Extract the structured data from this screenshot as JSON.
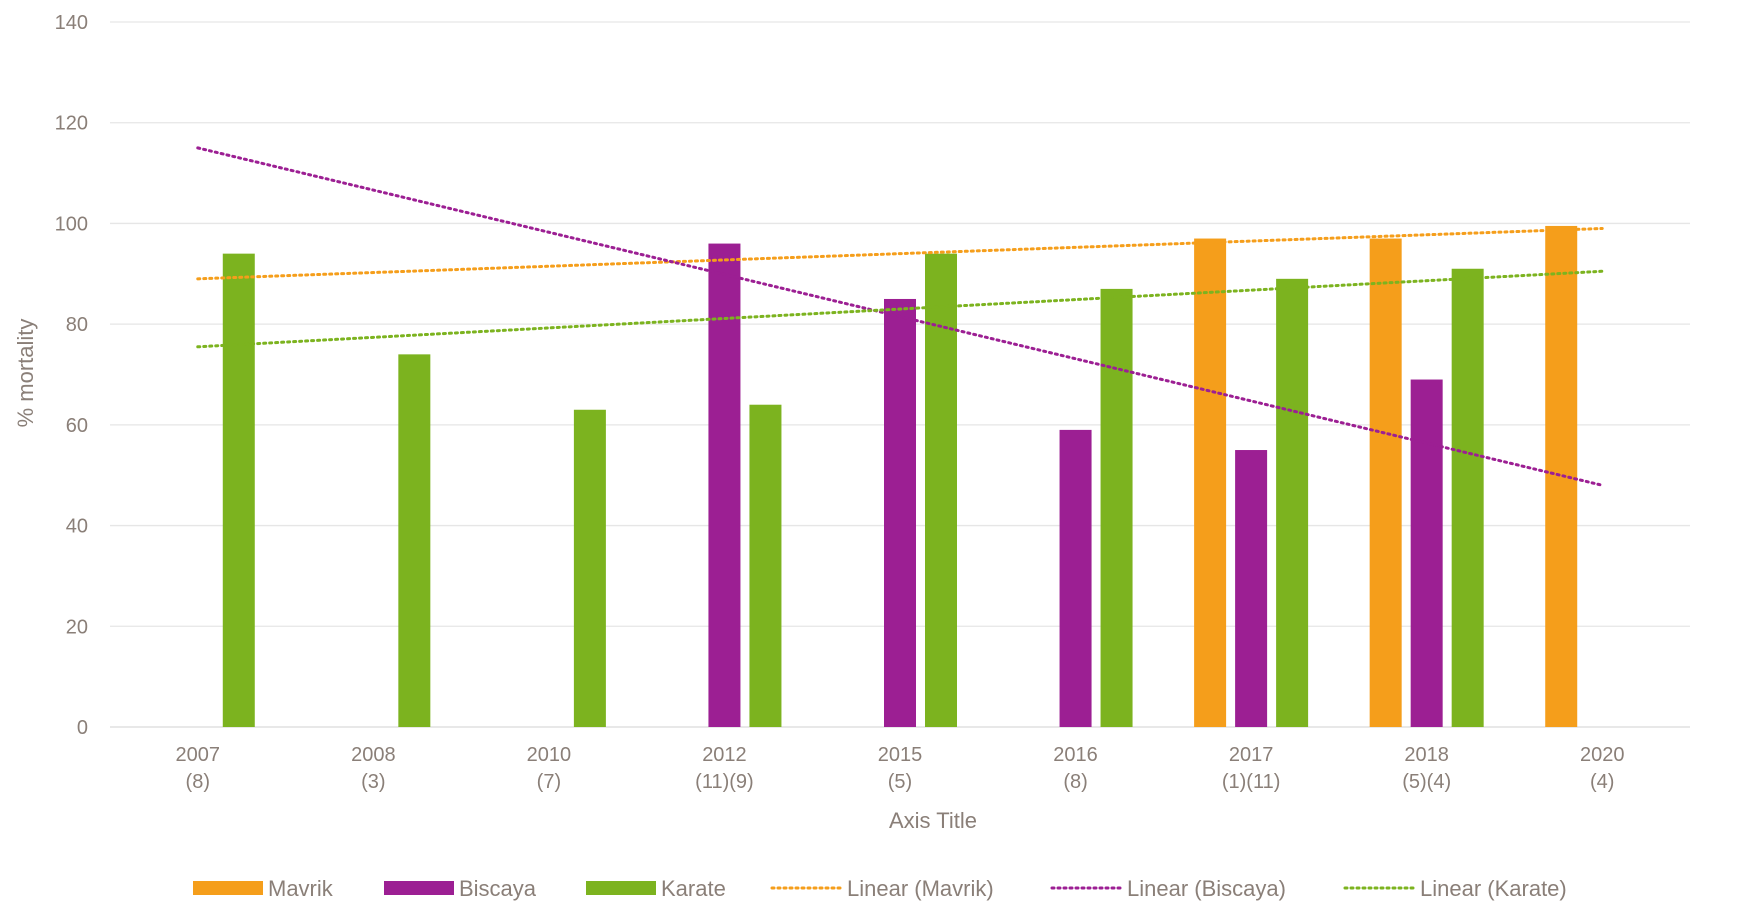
{
  "chart_data": {
    "type": "bar",
    "title": "",
    "xlabel": "Axis Title",
    "ylabel": "% mortality",
    "ylim": [
      0,
      140
    ],
    "yticks": [
      0,
      20,
      40,
      60,
      80,
      100,
      120,
      140
    ],
    "grid": true,
    "legend_position": "bottom",
    "categories": [
      {
        "year": "2007",
        "n": "(8)"
      },
      {
        "year": "2008",
        "n": "(3)"
      },
      {
        "year": "2010",
        "n": "(7)"
      },
      {
        "year": "2012",
        "n": "(11)(9)"
      },
      {
        "year": "2015",
        "n": "(5)"
      },
      {
        "year": "2016",
        "n": "(8)"
      },
      {
        "year": "2017",
        "n": "(1)(11)"
      },
      {
        "year": "2018",
        "n": "(5)(4)"
      },
      {
        "year": "2020",
        "n": "(4)"
      }
    ],
    "series": [
      {
        "name": "Mavrik",
        "color": "#f59e1b",
        "values": [
          null,
          null,
          null,
          null,
          null,
          null,
          97,
          97,
          99.5
        ]
      },
      {
        "name": "Biscaya",
        "color": "#9c1f93",
        "values": [
          null,
          null,
          null,
          96,
          85,
          59,
          55,
          69,
          null
        ]
      },
      {
        "name": "Karate",
        "color": "#7cb31f",
        "values": [
          94,
          74,
          63,
          64,
          94,
          87,
          89,
          91,
          null
        ]
      }
    ],
    "trendlines": [
      {
        "name": "Linear (Mavrik)",
        "color": "#f59e1b",
        "start": 89,
        "end": 99
      },
      {
        "name": "Linear (Biscaya)",
        "color": "#9c1f93",
        "start": 115,
        "end": 48
      },
      {
        "name": "Linear (Karate)",
        "color": "#7cb31f",
        "start": 75.5,
        "end": 90.5
      }
    ]
  }
}
